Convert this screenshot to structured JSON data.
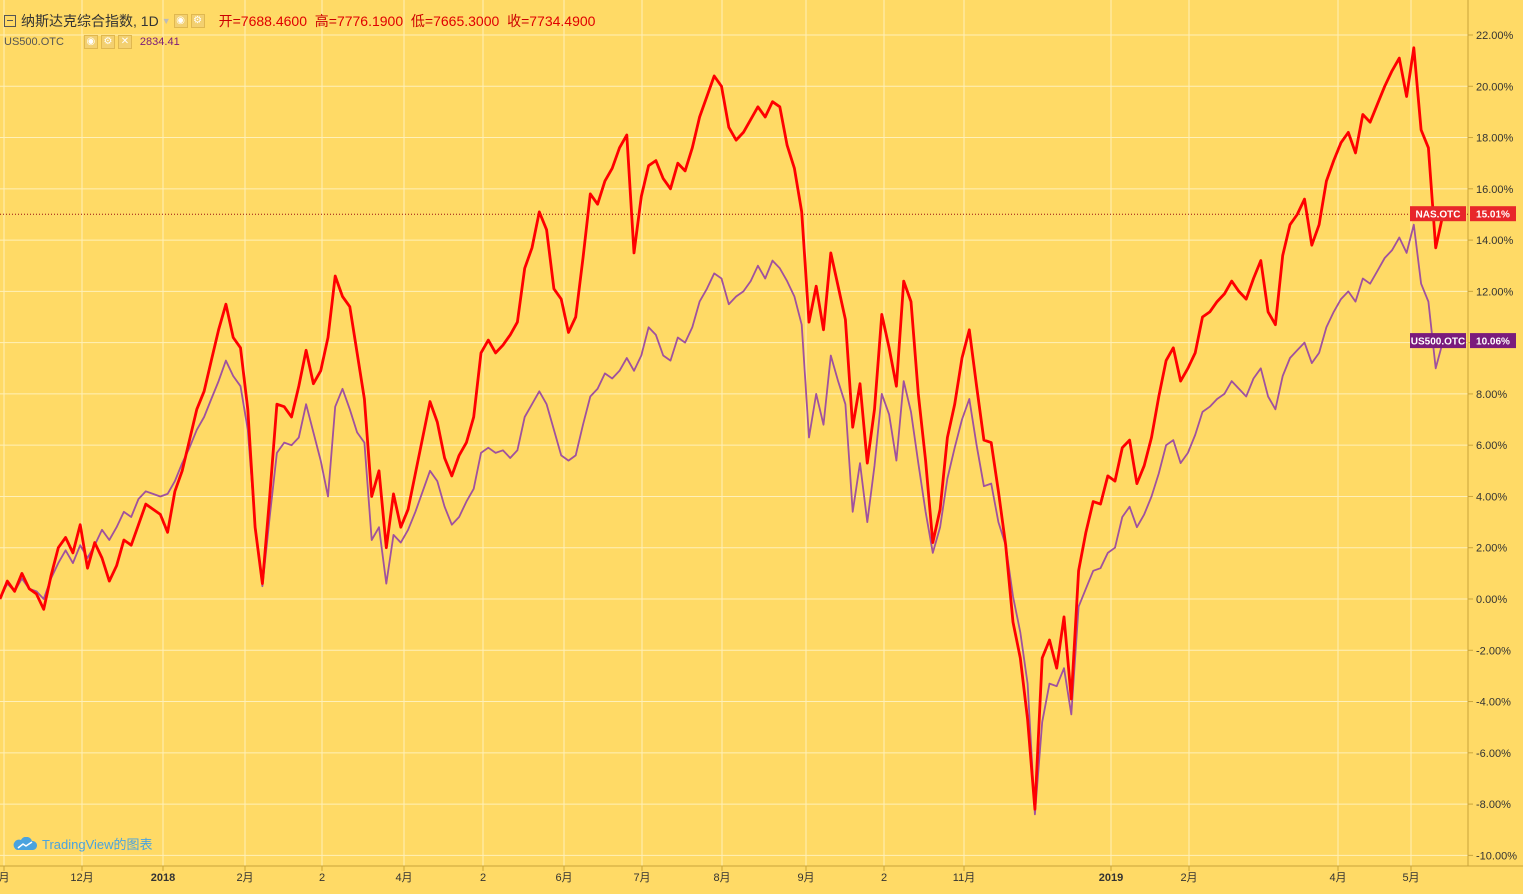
{
  "legend": {
    "symbol_icon": "collapse-square-icon",
    "title": "纳斯达克综合指数, 1D",
    "open_label": "开=",
    "open": "7688.4600",
    "high_label": "高=",
    "high": "7776.1900",
    "low_label": "低=",
    "low": "7665.3000",
    "close_label": "收=",
    "close": "7734.4900",
    "secondary_symbol": "US500.OTC",
    "secondary_value": "2834.41"
  },
  "brand": {
    "text": "TradingView的图表",
    "icon": "cloud-logo-icon"
  },
  "colors": {
    "background": "#FFDA66",
    "nas": "#FF0000",
    "us500": "#A0519E",
    "grid": "#FFF0B8",
    "nas_badge": "#E8262A",
    "us500_badge": "#7A1B7D"
  },
  "chart_data": {
    "type": "line",
    "title": "纳斯达克综合指数, 1D",
    "y_unit": "%",
    "ylim": [
      -10,
      22
    ],
    "y_ticks": [
      "22.00%",
      "20.00%",
      "18.00%",
      "16.00%",
      "14.00%",
      "12.00%",
      "10.00%",
      "8.00%",
      "6.00%",
      "4.00%",
      "2.00%",
      "0.00%",
      "-2.00%",
      "-4.00%",
      "-6.00%",
      "-8.00%",
      "-10.00%"
    ],
    "x_ticks": [
      "月",
      "12月",
      "2018",
      "2月",
      "2",
      "4月",
      "2",
      "6月",
      "7月",
      "8月",
      "9月",
      "2",
      "11月",
      "2019",
      "2月",
      "4月",
      "5月"
    ],
    "grid": true,
    "last_value_line": 15.01,
    "series": [
      {
        "name": "NAS.OTC",
        "last_label": "15.01%",
        "values": [
          0.0,
          0.7,
          0.3,
          1.0,
          0.4,
          0.2,
          -0.4,
          0.9,
          2.0,
          2.4,
          1.8,
          2.9,
          1.2,
          2.2,
          1.6,
          0.7,
          1.3,
          2.3,
          2.1,
          2.9,
          3.7,
          3.5,
          3.3,
          2.6,
          4.2,
          5.0,
          6.2,
          7.4,
          8.1,
          9.3,
          10.5,
          11.5,
          10.2,
          9.8,
          7.4,
          2.8,
          0.6,
          4.0,
          7.6,
          7.5,
          7.1,
          8.3,
          9.7,
          8.4,
          8.9,
          10.2,
          12.6,
          11.8,
          11.4,
          9.6,
          7.8,
          4.0,
          5.0,
          2.0,
          4.1,
          2.8,
          3.5,
          4.9,
          6.3,
          7.7,
          6.9,
          5.5,
          4.8,
          5.6,
          6.1,
          7.1,
          9.6,
          10.1,
          9.6,
          9.9,
          10.3,
          10.8,
          12.9,
          13.7,
          15.1,
          14.4,
          12.1,
          11.7,
          10.4,
          11.0,
          13.3,
          15.8,
          15.4,
          16.3,
          16.8,
          17.6,
          18.1,
          13.5,
          15.7,
          16.9,
          17.1,
          16.4,
          16.0,
          17.0,
          16.7,
          17.6,
          18.8,
          19.6,
          20.4,
          20.0,
          18.4,
          17.9,
          18.2,
          18.7,
          19.2,
          18.8,
          19.4,
          19.2,
          17.7,
          16.8,
          15.1,
          10.8,
          12.2,
          10.5,
          13.5,
          12.2,
          10.9,
          6.7,
          8.4,
          5.3,
          7.4,
          11.1,
          9.8,
          8.3,
          12.4,
          11.6,
          8.0,
          5.4,
          2.2,
          3.5,
          6.3,
          7.6,
          9.4,
          10.5,
          8.3,
          6.2,
          6.1,
          4.2,
          2.1,
          -0.9,
          -2.3,
          -4.7,
          -8.2,
          -2.3,
          -1.6,
          -2.7,
          -0.7,
          -3.9,
          1.1,
          2.6,
          3.8,
          3.7,
          4.8,
          4.6,
          5.9,
          6.2,
          4.5,
          5.2,
          6.3,
          7.9,
          9.3,
          9.8,
          8.5,
          9.0,
          9.6,
          11.0,
          11.2,
          11.6,
          11.9,
          12.4,
          12.0,
          11.7,
          12.5,
          13.2,
          11.2,
          10.7,
          13.4,
          14.6,
          15.0,
          15.6,
          13.8,
          14.6,
          16.3,
          17.1,
          17.8,
          18.2,
          17.4,
          18.9,
          18.6,
          19.3,
          20.0,
          20.6,
          21.1,
          19.6,
          21.5,
          18.3,
          17.6,
          13.7,
          15.01
        ]
      },
      {
        "name": "US500.OTC",
        "last_label": "10.06%",
        "values": [
          0.0,
          0.6,
          0.3,
          0.8,
          0.4,
          0.3,
          0.0,
          0.8,
          1.4,
          1.9,
          1.4,
          2.1,
          1.6,
          2.1,
          2.7,
          2.3,
          2.8,
          3.4,
          3.2,
          3.9,
          4.2,
          4.1,
          4.0,
          4.1,
          4.6,
          5.3,
          5.9,
          6.6,
          7.1,
          7.8,
          8.5,
          9.3,
          8.7,
          8.3,
          6.6,
          2.9,
          0.5,
          3.2,
          5.7,
          6.1,
          6.0,
          6.3,
          7.6,
          6.5,
          5.4,
          4.0,
          7.5,
          8.2,
          7.4,
          6.5,
          6.1,
          2.3,
          2.8,
          0.6,
          2.5,
          2.2,
          2.7,
          3.4,
          4.2,
          5.0,
          4.6,
          3.6,
          2.9,
          3.2,
          3.8,
          4.3,
          5.7,
          5.9,
          5.7,
          5.8,
          5.5,
          5.8,
          7.1,
          7.6,
          8.1,
          7.6,
          6.6,
          5.6,
          5.4,
          5.6,
          6.8,
          7.9,
          8.2,
          8.8,
          8.6,
          8.9,
          9.4,
          8.9,
          9.5,
          10.6,
          10.3,
          9.5,
          9.3,
          10.2,
          10.0,
          10.6,
          11.6,
          12.1,
          12.7,
          12.5,
          11.5,
          11.8,
          12.0,
          12.4,
          13.0,
          12.5,
          13.2,
          12.9,
          12.4,
          11.8,
          10.7,
          6.3,
          8.0,
          6.8,
          9.5,
          8.5,
          7.6,
          3.4,
          5.3,
          3.0,
          5.2,
          8.0,
          7.2,
          5.4,
          8.5,
          7.3,
          5.3,
          3.4,
          1.8,
          2.8,
          4.7,
          5.9,
          7.0,
          7.8,
          6.0,
          4.4,
          4.5,
          3.0,
          2.1,
          0.1,
          -1.3,
          -3.3,
          -8.4,
          -4.8,
          -3.3,
          -3.4,
          -2.7,
          -4.5,
          -0.3,
          0.4,
          1.1,
          1.2,
          1.8,
          2.0,
          3.2,
          3.6,
          2.8,
          3.3,
          4.0,
          4.9,
          6.0,
          6.2,
          5.3,
          5.7,
          6.4,
          7.3,
          7.5,
          7.8,
          8.0,
          8.5,
          8.2,
          7.9,
          8.6,
          9.0,
          7.9,
          7.4,
          8.7,
          9.4,
          9.7,
          10.0,
          9.2,
          9.6,
          10.6,
          11.2,
          11.7,
          12.0,
          11.6,
          12.5,
          12.3,
          12.8,
          13.3,
          13.6,
          14.1,
          13.5,
          14.6,
          12.3,
          11.6,
          9.0,
          10.06
        ]
      }
    ]
  }
}
